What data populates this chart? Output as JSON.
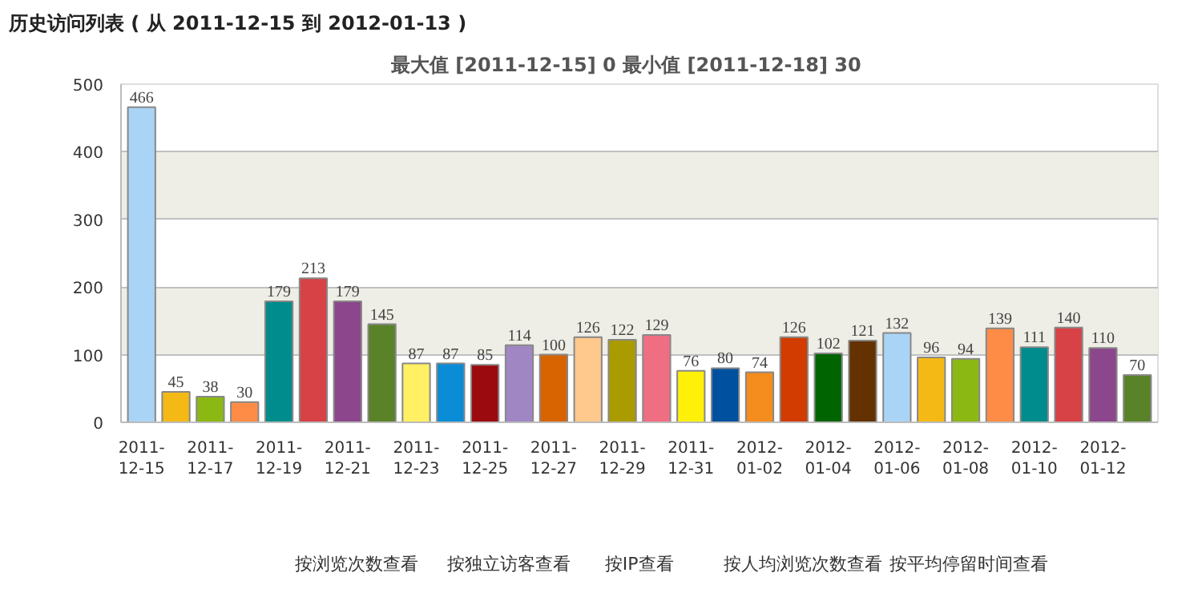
{
  "chart_data": {
    "type": "bar",
    "title": "历史访问列表 ( 从 2011-12-15 到 2012-01-13 )",
    "subtitle": "最大值 [2011-12-15]  0   最小值 [2011-12-18]  30",
    "categories": [
      "2011-\n12-15",
      null,
      "2011-\n12-17",
      null,
      "2011-\n12-19",
      null,
      "2011-\n12-21",
      null,
      "2011-\n12-23",
      null,
      "2011-\n12-25",
      null,
      "2011-\n12-27",
      null,
      "2011-\n12-29",
      null,
      "2011-\n12-31",
      null,
      "2012-\n01-02",
      null,
      "2012-\n01-04",
      null,
      "2012-\n01-06",
      null,
      "2012-\n01-08",
      null,
      "2012-\n01-10",
      null,
      "2012-\n01-12",
      null
    ],
    "values": [
      466,
      45,
      38,
      30,
      179,
      213,
      179,
      145,
      87,
      87,
      85,
      114,
      100,
      126,
      122,
      129,
      76,
      80,
      74,
      126,
      102,
      121,
      132,
      96,
      94,
      139,
      111,
      140,
      110,
      70
    ],
    "colors": [
      "#aad4f5",
      "#f5b915",
      "#8cb814",
      "#ff8c46",
      "#008c8c",
      "#d74246",
      "#8c468c",
      "#5a8228",
      "#fff064",
      "#0a8cd7",
      "#9b0a0f",
      "#a087c3",
      "#d76400",
      "#ffc88c",
      "#aa9b00",
      "#f06e82",
      "#fff00a",
      "#0050a0",
      "#f58c1e",
      "#d23c00",
      "#006400",
      "#643200",
      "#aad4f5",
      "#f5b915",
      "#8cb814",
      "#ff8c46",
      "#008c8c",
      "#d74246",
      "#8c468c",
      "#5a8228"
    ],
    "ylim": [
      0,
      500
    ],
    "yticks": [
      0,
      100,
      200,
      300,
      400,
      500
    ],
    "grid": "y",
    "data_labels": true,
    "annotations": [
      "按浏览次数查看",
      "按独立访客查看",
      "按IP查看",
      "按人均浏览次数查看",
      "按平均停留时间查看"
    ]
  }
}
